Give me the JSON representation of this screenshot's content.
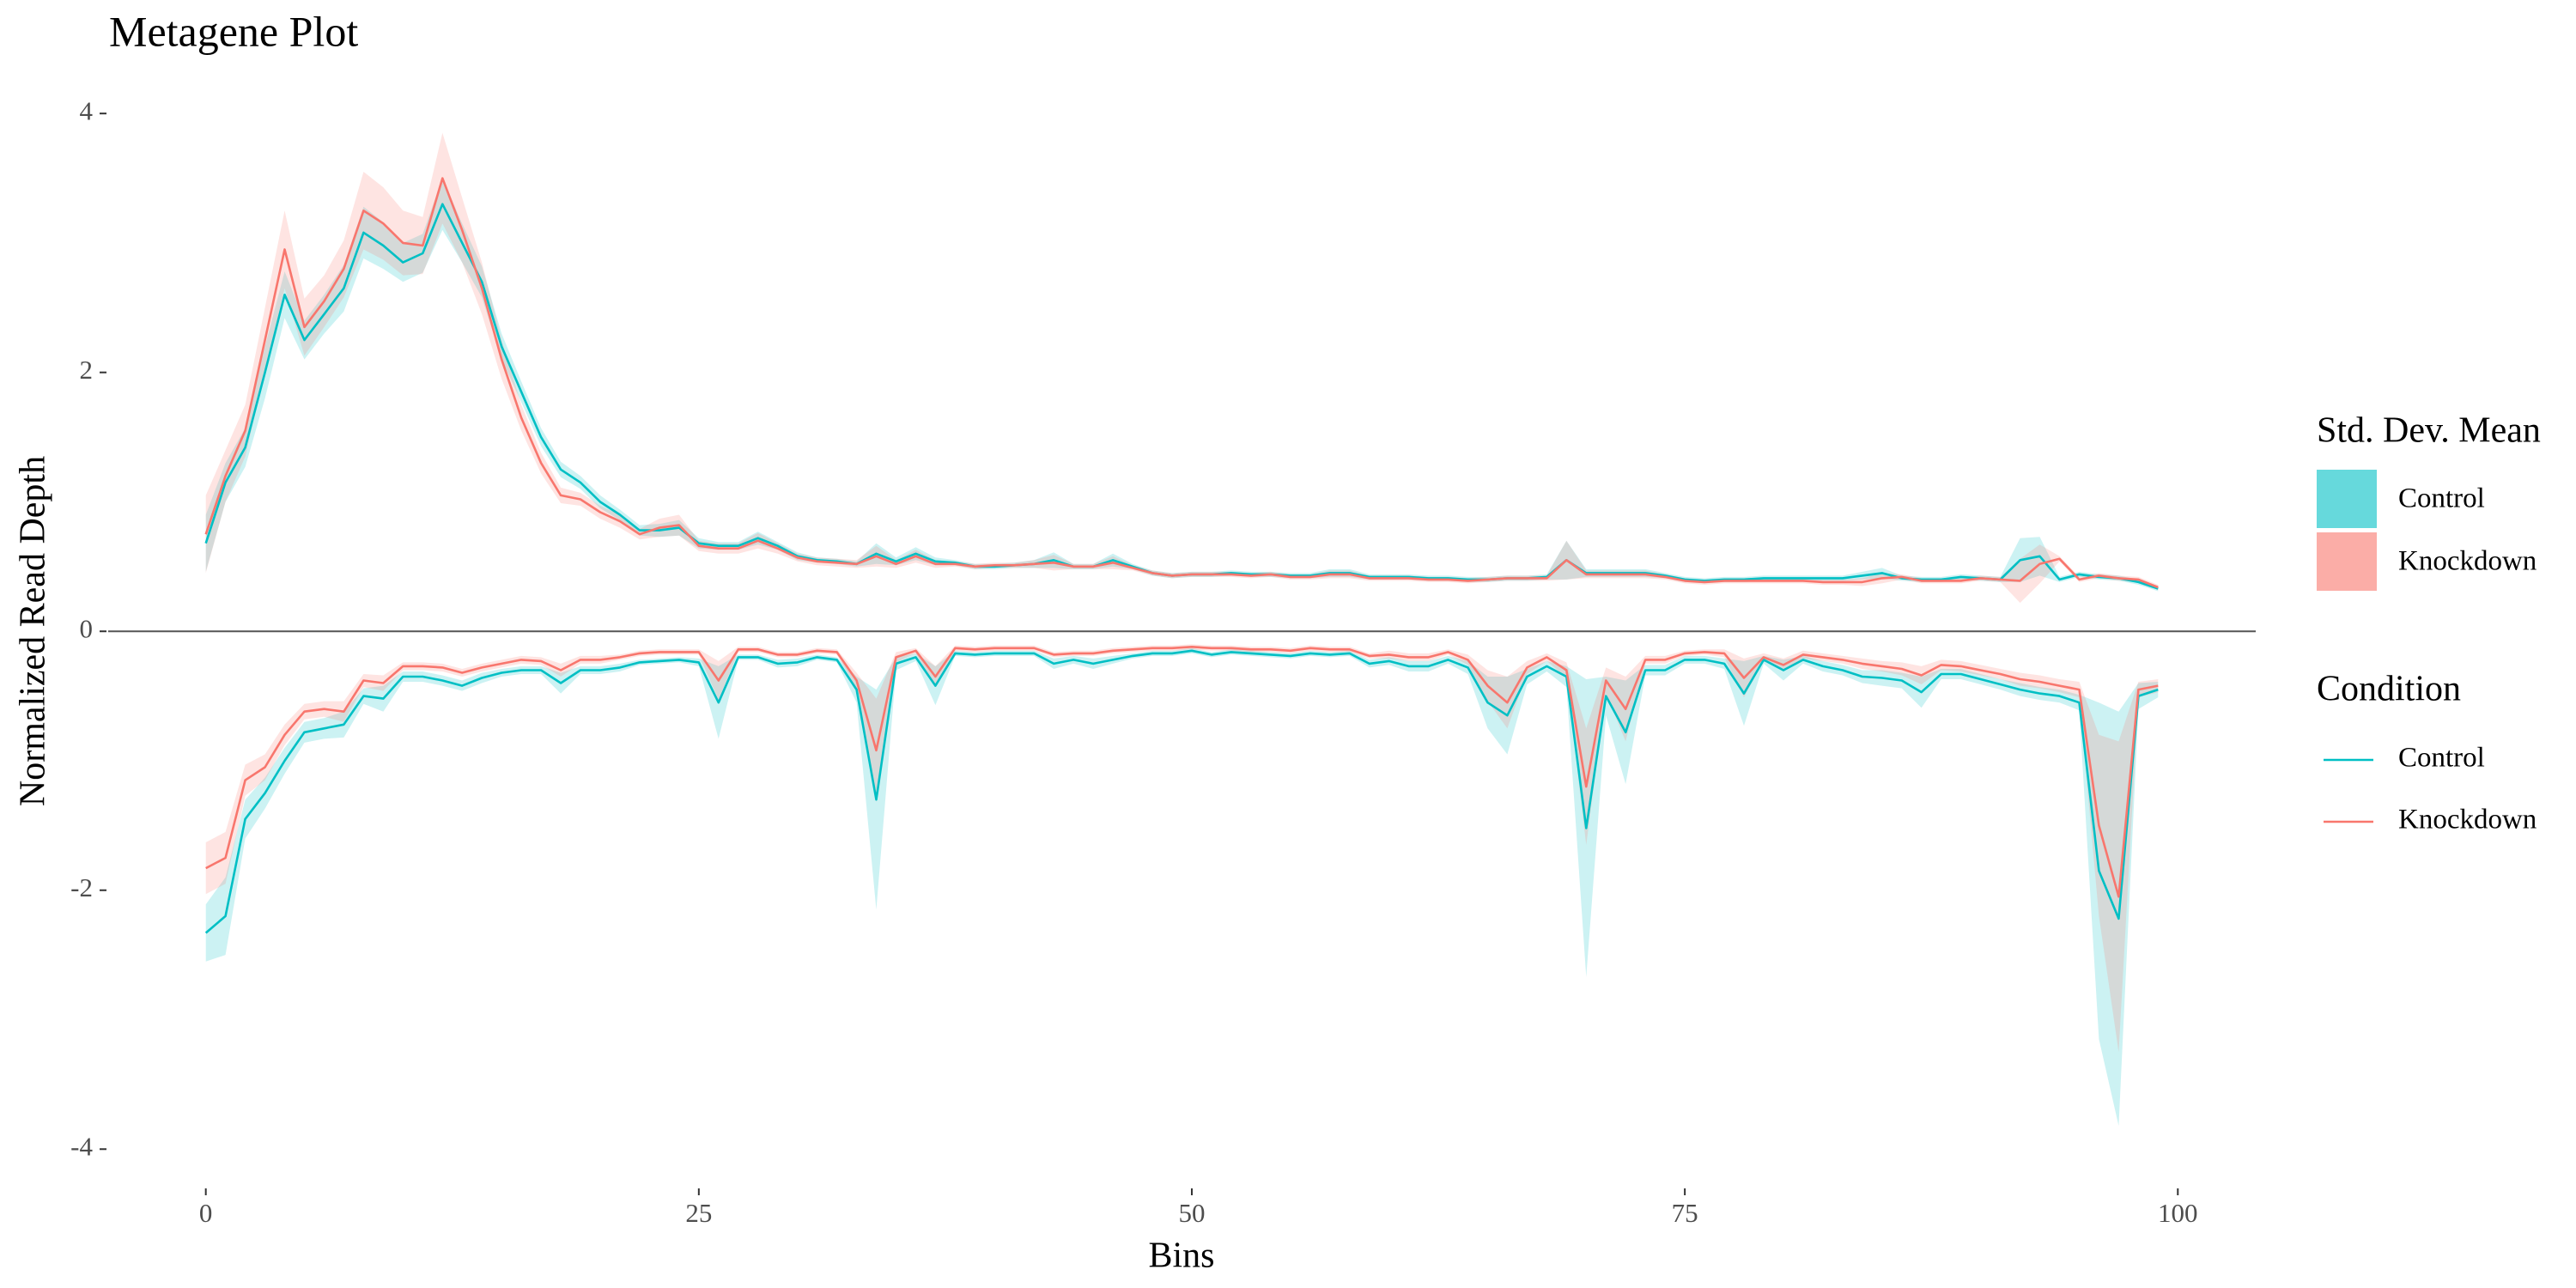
{
  "chart_data": {
    "type": "line",
    "title": "Metagene Plot",
    "x_label": "Bins",
    "y_label": "Normalized Read Depth",
    "xlim": [
      -4.95,
      103.95
    ],
    "ylim": [
      -4.29,
      4.24
    ],
    "xticks": [
      0,
      25,
      50,
      75,
      100
    ],
    "yticks": [
      -4,
      -2,
      0,
      2,
      4
    ],
    "hline": 0,
    "grid": false,
    "x": [
      0,
      1,
      2,
      3,
      4,
      5,
      6,
      7,
      8,
      9,
      10,
      11,
      12,
      13,
      14,
      15,
      16,
      17,
      18,
      19,
      20,
      21,
      22,
      23,
      24,
      25,
      26,
      27,
      28,
      29,
      30,
      31,
      32,
      33,
      34,
      35,
      36,
      37,
      38,
      39,
      40,
      41,
      42,
      43,
      44,
      45,
      46,
      47,
      48,
      49,
      50,
      51,
      52,
      53,
      54,
      55,
      56,
      57,
      58,
      59,
      60,
      61,
      62,
      63,
      64,
      65,
      66,
      67,
      68,
      69,
      70,
      71,
      72,
      73,
      74,
      75,
      76,
      77,
      78,
      79,
      80,
      81,
      82,
      83,
      84,
      85,
      86,
      87,
      88,
      89,
      90,
      91,
      92,
      93,
      94,
      95,
      96,
      97,
      98,
      99
    ],
    "series": [
      {
        "name": "Control",
        "color": "#00BFC4",
        "values": [
          0.68,
          1.15,
          1.42,
          2.0,
          2.6,
          2.25,
          2.45,
          2.65,
          3.08,
          2.98,
          2.85,
          2.92,
          3.3,
          3.0,
          2.7,
          2.2,
          1.85,
          1.5,
          1.25,
          1.15,
          1.0,
          0.9,
          0.78,
          0.78,
          0.8,
          0.68,
          0.66,
          0.66,
          0.72,
          0.66,
          0.58,
          0.55,
          0.54,
          0.52,
          0.6,
          0.54,
          0.6,
          0.54,
          0.53,
          0.5,
          0.5,
          0.51,
          0.52,
          0.55,
          0.5,
          0.5,
          0.55,
          0.5,
          0.45,
          0.43,
          0.44,
          0.44,
          0.45,
          0.44,
          0.44,
          0.43,
          0.43,
          0.45,
          0.45,
          0.42,
          0.42,
          0.42,
          0.41,
          0.41,
          0.4,
          0.4,
          0.41,
          0.41,
          0.42,
          0.55,
          0.45,
          0.45,
          0.45,
          0.45,
          0.43,
          0.4,
          0.39,
          0.4,
          0.4,
          0.41,
          0.41,
          0.41,
          0.41,
          0.41,
          0.43,
          0.45,
          0.41,
          0.4,
          0.4,
          0.42,
          0.41,
          0.4,
          0.55,
          0.58,
          0.4,
          0.44,
          0.42,
          0.41,
          0.38,
          0.33
        ],
        "sd": [
          0.22,
          0.15,
          0.15,
          0.2,
          0.18,
          0.15,
          0.15,
          0.18,
          0.2,
          0.18,
          0.15,
          0.15,
          0.2,
          0.15,
          0.12,
          0.1,
          0.08,
          0.07,
          0.06,
          0.05,
          0.05,
          0.04,
          0.04,
          0.05,
          0.06,
          0.04,
          0.03,
          0.03,
          0.05,
          0.03,
          0.03,
          0.02,
          0.02,
          0.02,
          0.08,
          0.03,
          0.05,
          0.03,
          0.02,
          0.02,
          0.02,
          0.02,
          0.03,
          0.06,
          0.02,
          0.02,
          0.05,
          0.02,
          0.02,
          0.02,
          0.02,
          0.02,
          0.02,
          0.02,
          0.02,
          0.02,
          0.02,
          0.03,
          0.03,
          0.02,
          0.02,
          0.02,
          0.02,
          0.02,
          0.02,
          0.02,
          0.02,
          0.02,
          0.02,
          0.15,
          0.03,
          0.03,
          0.03,
          0.03,
          0.02,
          0.02,
          0.02,
          0.02,
          0.02,
          0.02,
          0.02,
          0.02,
          0.02,
          0.02,
          0.03,
          0.04,
          0.02,
          0.02,
          0.02,
          0.02,
          0.02,
          0.02,
          0.17,
          0.15,
          0.02,
          0.02,
          0.02,
          0.02,
          0.02,
          0.02
        ]
      },
      {
        "name": "Knockdown",
        "color": "#F8766D",
        "values": [
          0.75,
          1.2,
          1.55,
          2.25,
          2.95,
          2.35,
          2.55,
          2.8,
          3.25,
          3.15,
          3.0,
          2.98,
          3.5,
          3.1,
          2.65,
          2.1,
          1.65,
          1.3,
          1.05,
          1.02,
          0.92,
          0.85,
          0.75,
          0.8,
          0.82,
          0.66,
          0.64,
          0.64,
          0.7,
          0.64,
          0.57,
          0.54,
          0.53,
          0.52,
          0.58,
          0.52,
          0.58,
          0.52,
          0.52,
          0.5,
          0.51,
          0.51,
          0.52,
          0.53,
          0.5,
          0.5,
          0.53,
          0.49,
          0.45,
          0.43,
          0.44,
          0.44,
          0.44,
          0.43,
          0.44,
          0.42,
          0.42,
          0.44,
          0.44,
          0.41,
          0.41,
          0.41,
          0.4,
          0.4,
          0.39,
          0.4,
          0.41,
          0.41,
          0.41,
          0.55,
          0.44,
          0.44,
          0.44,
          0.44,
          0.42,
          0.39,
          0.38,
          0.39,
          0.39,
          0.39,
          0.39,
          0.39,
          0.38,
          0.38,
          0.38,
          0.41,
          0.42,
          0.39,
          0.39,
          0.39,
          0.41,
          0.4,
          0.39,
          0.52,
          0.56,
          0.4,
          0.43,
          0.41,
          0.4,
          0.34
        ],
        "sd": [
          0.3,
          0.2,
          0.2,
          0.25,
          0.3,
          0.22,
          0.2,
          0.22,
          0.3,
          0.28,
          0.25,
          0.22,
          0.35,
          0.25,
          0.2,
          0.15,
          0.1,
          0.08,
          0.06,
          0.05,
          0.05,
          0.05,
          0.04,
          0.07,
          0.08,
          0.04,
          0.04,
          0.04,
          0.06,
          0.04,
          0.03,
          0.03,
          0.03,
          0.03,
          0.08,
          0.03,
          0.05,
          0.03,
          0.02,
          0.02,
          0.02,
          0.02,
          0.03,
          0.06,
          0.02,
          0.02,
          0.05,
          0.02,
          0.02,
          0.02,
          0.02,
          0.02,
          0.02,
          0.02,
          0.02,
          0.02,
          0.02,
          0.03,
          0.03,
          0.02,
          0.02,
          0.02,
          0.02,
          0.02,
          0.02,
          0.02,
          0.02,
          0.02,
          0.02,
          0.15,
          0.03,
          0.03,
          0.03,
          0.03,
          0.02,
          0.02,
          0.02,
          0.02,
          0.02,
          0.02,
          0.02,
          0.02,
          0.02,
          0.02,
          0.03,
          0.04,
          0.02,
          0.02,
          0.02,
          0.02,
          0.02,
          0.02,
          0.17,
          0.15,
          0.02,
          0.02,
          0.02,
          0.02,
          0.02,
          0.02
        ]
      },
      {
        "name": "Control",
        "color": "#00BFC4",
        "values": [
          -2.33,
          -2.2,
          -1.45,
          -1.25,
          -1.0,
          -0.78,
          -0.75,
          -0.72,
          -0.5,
          -0.52,
          -0.35,
          -0.35,
          -0.38,
          -0.42,
          -0.36,
          -0.32,
          -0.3,
          -0.3,
          -0.4,
          -0.3,
          -0.3,
          -0.28,
          -0.24,
          -0.23,
          -0.22,
          -0.24,
          -0.55,
          -0.2,
          -0.2,
          -0.25,
          -0.24,
          -0.2,
          -0.22,
          -0.45,
          -1.3,
          -0.25,
          -0.2,
          -0.42,
          -0.17,
          -0.18,
          -0.17,
          -0.17,
          -0.17,
          -0.25,
          -0.22,
          -0.25,
          -0.22,
          -0.19,
          -0.17,
          -0.17,
          -0.15,
          -0.18,
          -0.16,
          -0.17,
          -0.18,
          -0.19,
          -0.17,
          -0.18,
          -0.17,
          -0.25,
          -0.23,
          -0.27,
          -0.27,
          -0.22,
          -0.28,
          -0.55,
          -0.65,
          -0.35,
          -0.27,
          -0.35,
          -1.52,
          -0.5,
          -0.78,
          -0.3,
          -0.3,
          -0.22,
          -0.22,
          -0.25,
          -0.48,
          -0.22,
          -0.3,
          -0.22,
          -0.27,
          -0.3,
          -0.35,
          -0.36,
          -0.38,
          -0.47,
          -0.33,
          -0.33,
          -0.37,
          -0.41,
          -0.45,
          -0.48,
          -0.5,
          -0.55,
          -1.85,
          -2.22,
          -0.5,
          -0.45
        ],
        "sd": [
          0.22,
          0.3,
          0.15,
          0.12,
          0.1,
          0.08,
          0.08,
          0.1,
          0.06,
          0.1,
          0.04,
          0.04,
          0.04,
          0.04,
          0.04,
          0.03,
          0.03,
          0.03,
          0.08,
          0.03,
          0.03,
          0.03,
          0.02,
          0.02,
          0.02,
          0.03,
          0.28,
          0.02,
          0.02,
          0.03,
          0.03,
          0.02,
          0.02,
          0.1,
          0.85,
          0.05,
          0.03,
          0.15,
          0.02,
          0.02,
          0.02,
          0.02,
          0.02,
          0.04,
          0.03,
          0.04,
          0.03,
          0.02,
          0.02,
          0.02,
          0.02,
          0.02,
          0.02,
          0.02,
          0.02,
          0.02,
          0.02,
          0.02,
          0.02,
          0.03,
          0.03,
          0.04,
          0.04,
          0.03,
          0.05,
          0.2,
          0.3,
          0.06,
          0.04,
          0.08,
          1.15,
          0.15,
          0.4,
          0.04,
          0.04,
          0.03,
          0.03,
          0.04,
          0.25,
          0.03,
          0.08,
          0.03,
          0.04,
          0.04,
          0.05,
          0.06,
          0.06,
          0.12,
          0.04,
          0.04,
          0.04,
          0.04,
          0.05,
          0.05,
          0.05,
          0.06,
          1.3,
          1.6,
          0.1,
          0.06
        ]
      },
      {
        "name": "Knockdown",
        "color": "#F8766D",
        "values": [
          -1.83,
          -1.75,
          -1.15,
          -1.05,
          -0.8,
          -0.62,
          -0.6,
          -0.62,
          -0.38,
          -0.4,
          -0.27,
          -0.27,
          -0.28,
          -0.32,
          -0.28,
          -0.25,
          -0.22,
          -0.23,
          -0.3,
          -0.22,
          -0.22,
          -0.2,
          -0.17,
          -0.16,
          -0.16,
          -0.16,
          -0.38,
          -0.14,
          -0.14,
          -0.18,
          -0.18,
          -0.15,
          -0.16,
          -0.38,
          -0.92,
          -0.2,
          -0.15,
          -0.35,
          -0.13,
          -0.14,
          -0.13,
          -0.13,
          -0.13,
          -0.18,
          -0.17,
          -0.17,
          -0.15,
          -0.14,
          -0.13,
          -0.13,
          -0.12,
          -0.13,
          -0.13,
          -0.14,
          -0.14,
          -0.15,
          -0.13,
          -0.14,
          -0.14,
          -0.19,
          -0.18,
          -0.2,
          -0.2,
          -0.16,
          -0.22,
          -0.42,
          -0.55,
          -0.28,
          -0.2,
          -0.3,
          -1.2,
          -0.38,
          -0.6,
          -0.22,
          -0.22,
          -0.17,
          -0.16,
          -0.17,
          -0.36,
          -0.2,
          -0.26,
          -0.18,
          -0.2,
          -0.22,
          -0.25,
          -0.27,
          -0.29,
          -0.34,
          -0.26,
          -0.27,
          -0.3,
          -0.33,
          -0.37,
          -0.39,
          -0.42,
          -0.45,
          -1.5,
          -2.05,
          -0.45,
          -0.42
        ],
        "sd": [
          0.2,
          0.2,
          0.12,
          0.1,
          0.08,
          0.06,
          0.06,
          0.08,
          0.05,
          0.06,
          0.03,
          0.03,
          0.03,
          0.03,
          0.03,
          0.03,
          0.03,
          0.03,
          0.05,
          0.03,
          0.03,
          0.02,
          0.02,
          0.02,
          0.02,
          0.02,
          0.15,
          0.02,
          0.02,
          0.02,
          0.02,
          0.02,
          0.02,
          0.06,
          0.4,
          0.04,
          0.02,
          0.08,
          0.02,
          0.02,
          0.02,
          0.02,
          0.02,
          0.02,
          0.02,
          0.02,
          0.02,
          0.02,
          0.02,
          0.02,
          0.02,
          0.02,
          0.02,
          0.02,
          0.02,
          0.02,
          0.02,
          0.02,
          0.02,
          0.02,
          0.03,
          0.03,
          0.03,
          0.02,
          0.04,
          0.12,
          0.2,
          0.05,
          0.03,
          0.06,
          0.45,
          0.1,
          0.25,
          0.03,
          0.03,
          0.02,
          0.02,
          0.03,
          0.15,
          0.03,
          0.05,
          0.03,
          0.03,
          0.03,
          0.04,
          0.04,
          0.05,
          0.07,
          0.04,
          0.04,
          0.04,
          0.04,
          0.05,
          0.05,
          0.05,
          0.06,
          0.7,
          1.2,
          0.06,
          0.05
        ]
      }
    ],
    "legends": [
      {
        "title": "Std. Dev. Mean",
        "labels": [
          "Control",
          "Knockdown"
        ]
      },
      {
        "title": "Condition",
        "labels": [
          "Control",
          "Knockdown"
        ]
      }
    ]
  }
}
